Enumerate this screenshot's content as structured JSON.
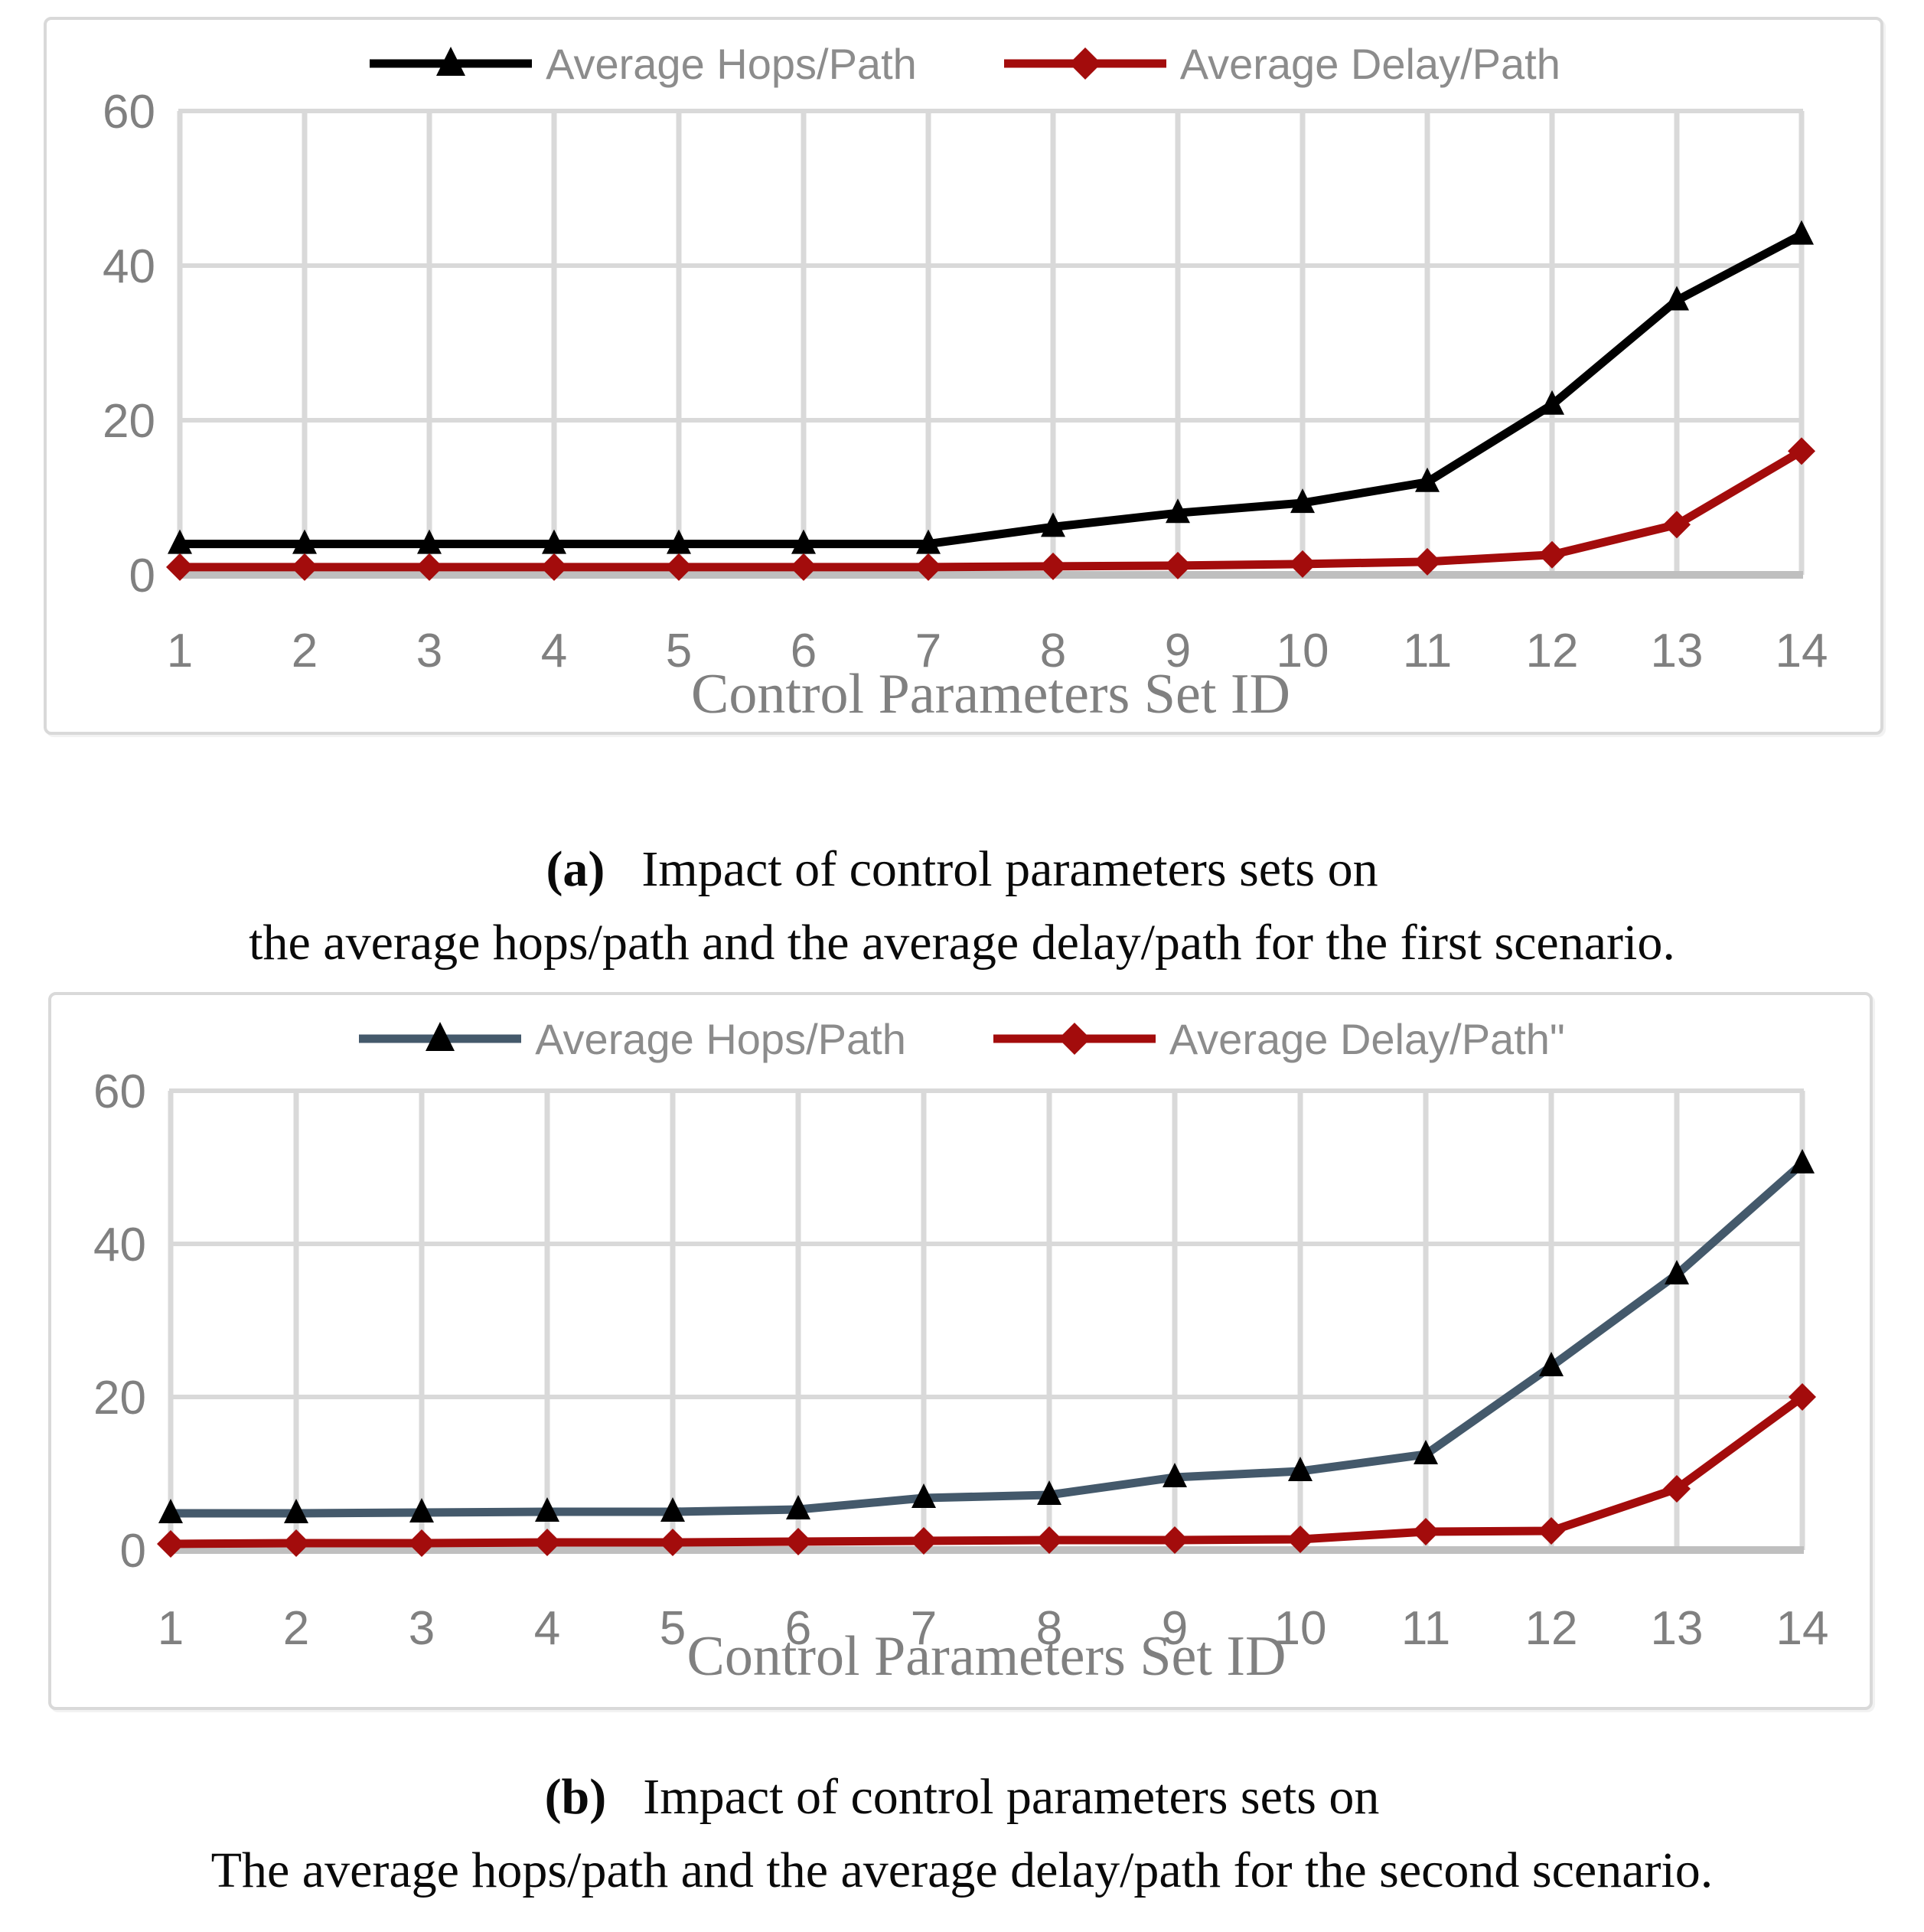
{
  "page": {
    "background": "#FFFFFF"
  },
  "colors": {
    "grid": "#D9D9D9",
    "axis_baseline": "#BFBFBF",
    "tick_text": "#808080",
    "legend_text": "#8C8C8C",
    "axis_title_text": "#808080",
    "caption_text": "#0A0A0A",
    "frame_border": "#D9D9D9",
    "hops_a": "#000000",
    "hops_b": "#44596B",
    "delay": "#A30C0C"
  },
  "captions": {
    "a": {
      "label": "(a)",
      "line1": "Impact of control parameters sets on",
      "line2": "the average hops/path and the average delay/path for the first scenario."
    },
    "b": {
      "label": "(b)",
      "line1": "Impact of control parameters sets on",
      "line2": "The average hops/path and the average delay/path for the second scenario."
    }
  },
  "chart_data": [
    {
      "id": "a",
      "type": "line",
      "title": "",
      "xlabel": "Control Parameters Set ID",
      "ylabel": "",
      "x": [
        1,
        2,
        3,
        4,
        5,
        6,
        7,
        8,
        9,
        10,
        11,
        12,
        13,
        14
      ],
      "ylim": [
        0,
        60
      ],
      "yticks": [
        0,
        20,
        40,
        60
      ],
      "grid": true,
      "legend_position": "top",
      "series": [
        {
          "name": "Average Hops/Path",
          "color": "#000000",
          "marker": "triangle",
          "marker_color": "#000000",
          "values": [
            4,
            4,
            4,
            4,
            4,
            4,
            4,
            6.2,
            8,
            9.3,
            12,
            22,
            35.5,
            44
          ]
        },
        {
          "name": "Average Delay/Path",
          "color": "#A30C0C",
          "marker": "diamond",
          "marker_color": "#A30C0C",
          "values": [
            1,
            1,
            1,
            1,
            1,
            1,
            1,
            1.1,
            1.2,
            1.4,
            1.7,
            2.6,
            6.5,
            16
          ]
        }
      ]
    },
    {
      "id": "b",
      "type": "line",
      "title": "",
      "xlabel": "Control Parameters Set ID",
      "ylabel": "",
      "x": [
        1,
        2,
        3,
        4,
        5,
        6,
        7,
        8,
        9,
        10,
        11,
        12,
        13,
        14
      ],
      "ylim": [
        0,
        60
      ],
      "yticks": [
        0,
        20,
        40,
        60
      ],
      "grid": true,
      "legend_position": "top",
      "series": [
        {
          "name": "Average Hops/Path",
          "color": "#44596B",
          "marker": "triangle",
          "marker_color": "#000000",
          "values": [
            4.8,
            4.8,
            4.9,
            5,
            5,
            5.3,
            6.8,
            7.2,
            9.5,
            10.3,
            12.5,
            24,
            36,
            50.5
          ]
        },
        {
          "name": "Average Delay/Path\"",
          "color": "#A30C0C",
          "marker": "diamond",
          "marker_color": "#A30C0C",
          "values": [
            0.8,
            0.9,
            0.9,
            1,
            1,
            1.1,
            1.2,
            1.3,
            1.3,
            1.4,
            2.4,
            2.5,
            8,
            20
          ]
        }
      ]
    }
  ]
}
